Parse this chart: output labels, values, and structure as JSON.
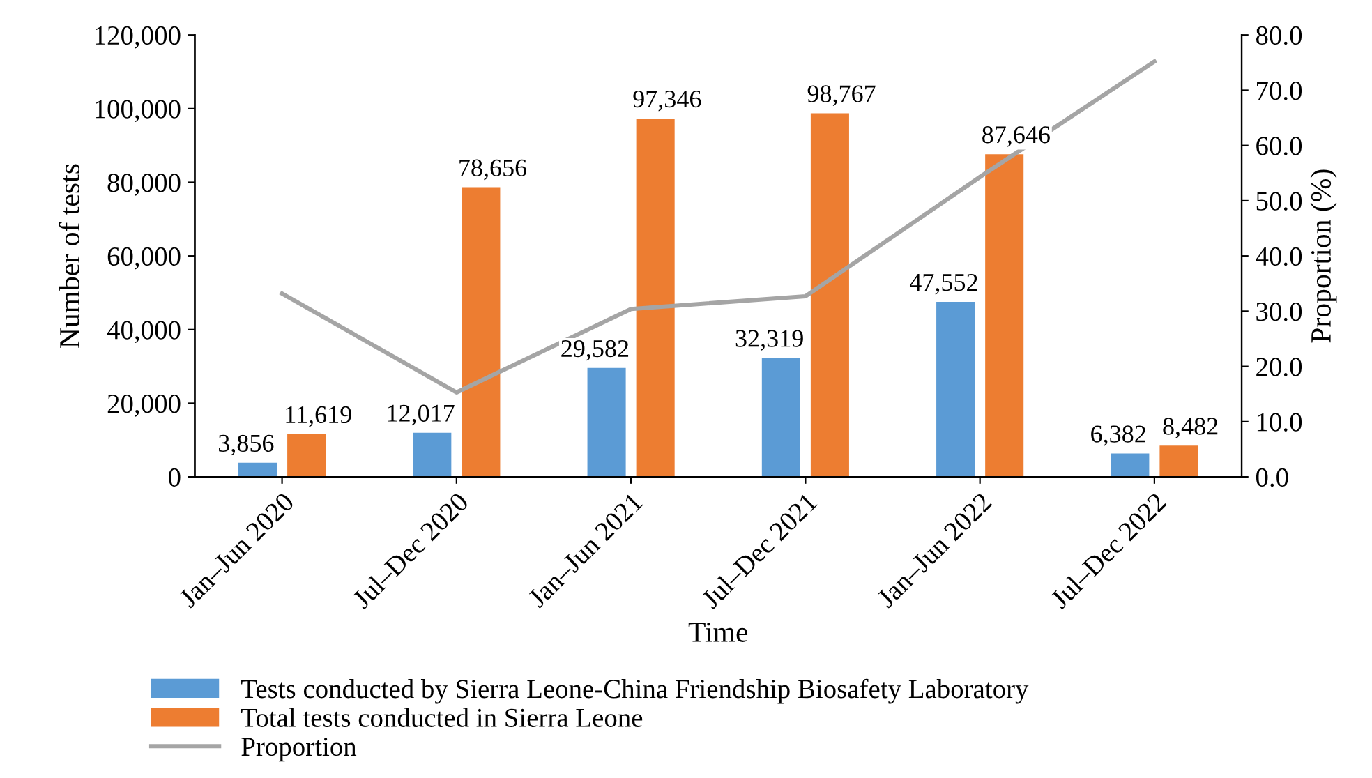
{
  "chart_data": {
    "type": "bar",
    "xlabel": "Time",
    "ylabel": "Number of tests",
    "y2label": "Proportion (%)",
    "categories": [
      "Jan–Jun 2020",
      "Jul–Dec 2020",
      "Jan–Jun 2021",
      "Jul–Dec 2021",
      "Jan–Jun 2022",
      "Jul–Dec 2022"
    ],
    "series": [
      {
        "name": "Tests conducted by Sierra Leone-China Friendship Biosafety Laboratory",
        "color": "#5b9bd5",
        "values": [
          3856,
          12017,
          29582,
          32319,
          47552,
          6382
        ],
        "value_labels": [
          "3,856",
          "12,017",
          "29,582",
          "32,319",
          "47,552",
          "6,382"
        ]
      },
      {
        "name": "Total tests conducted in Sierra Leone",
        "color": "#ed7d31",
        "values": [
          11619,
          78656,
          97346,
          98767,
          87646,
          8482
        ],
        "value_labels": [
          "11,619",
          "78,656",
          "97,346",
          "98,767",
          "87,646",
          "8,482"
        ]
      },
      {
        "name": "Proportion",
        "type": "line",
        "axis": "y2",
        "color": "#a5a5a5",
        "values": [
          33.2,
          15.3,
          30.4,
          32.7,
          54.3,
          75.2
        ]
      }
    ],
    "ylim": [
      0,
      120000
    ],
    "yticks": [
      {
        "value": 0,
        "label": "0"
      },
      {
        "value": 20000,
        "label": "20,000"
      },
      {
        "value": 40000,
        "label": "40,000"
      },
      {
        "value": 60000,
        "label": "60,000"
      },
      {
        "value": 80000,
        "label": "80,000"
      },
      {
        "value": 100000,
        "label": "100,000"
      },
      {
        "value": 120000,
        "label": "120,000"
      }
    ],
    "y2lim": [
      0,
      80
    ],
    "y2ticks": [
      {
        "value": 0,
        "label": "0.0"
      },
      {
        "value": 10,
        "label": "10.0"
      },
      {
        "value": 20,
        "label": "20.0"
      },
      {
        "value": 30,
        "label": "30.0"
      },
      {
        "value": 40,
        "label": "40.0"
      },
      {
        "value": 50,
        "label": "50.0"
      },
      {
        "value": 60,
        "label": "60.0"
      },
      {
        "value": 70,
        "label": "70.0"
      },
      {
        "value": 80,
        "label": "80.0"
      }
    ],
    "grid": false,
    "legend": "bottom",
    "marker": "none",
    "line_style": "solid"
  }
}
